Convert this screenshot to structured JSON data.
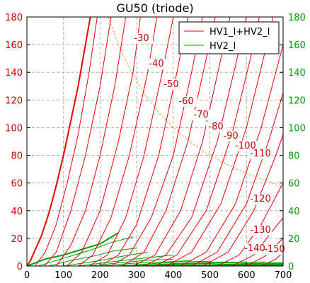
{
  "chart_data": {
    "type": "line",
    "title": "GU50 (triode)",
    "xlabel": "",
    "ylabel": "",
    "xlim": [
      0,
      700
    ],
    "ylim": [
      0,
      180
    ],
    "xticks": [
      0,
      100,
      200,
      300,
      400,
      500,
      600,
      700
    ],
    "yticks": [
      0,
      20,
      40,
      60,
      80,
      100,
      120,
      140,
      160,
      180
    ],
    "grid": true,
    "legend_position": "top-right",
    "colors": {
      "total": "#ee0000",
      "g2": "#00a000",
      "dissipation": "#f0a040",
      "grid": "#b0b0b0"
    },
    "legend": [
      "HV1_I+HV2_I",
      "HV2_I"
    ],
    "grid_curve_labels": [
      "-30",
      "-40",
      "-50",
      "-60",
      "-70",
      "-80",
      "-90",
      "-100",
      "-110",
      "-120",
      "-130",
      "-140",
      "-150"
    ],
    "series": [
      {
        "grid_voltage": 0,
        "total": [
          [
            0,
            0
          ],
          [
            10,
            4
          ],
          [
            20,
            10
          ],
          [
            40,
            22
          ],
          [
            60,
            38
          ],
          [
            80,
            58
          ],
          [
            100,
            80
          ],
          [
            120,
            105
          ],
          [
            140,
            130
          ],
          [
            160,
            160
          ],
          [
            180,
            190
          ]
        ],
        "g2": [
          [
            0,
            0
          ],
          [
            50,
            5
          ],
          [
            100,
            8
          ],
          [
            150,
            12
          ],
          [
            200,
            16
          ],
          [
            250,
            24
          ]
        ]
      },
      {
        "grid_voltage": -10,
        "total": [
          [
            22,
            0
          ],
          [
            50,
            10
          ],
          [
            80,
            30
          ],
          [
            110,
            60
          ],
          [
            140,
            95
          ],
          [
            170,
            140
          ],
          [
            192,
            180
          ]
        ],
        "g2": [
          [
            30,
            0
          ],
          [
            80,
            4
          ],
          [
            130,
            8
          ],
          [
            180,
            12
          ],
          [
            230,
            17
          ],
          [
            290,
            21
          ]
        ]
      },
      {
        "grid_voltage": -20,
        "total": [
          [
            48,
            0
          ],
          [
            80,
            10
          ],
          [
            120,
            40
          ],
          [
            160,
            80
          ],
          [
            200,
            130
          ],
          [
            230,
            180
          ]
        ],
        "g2": [
          [
            60,
            0
          ],
          [
            120,
            4
          ],
          [
            180,
            7
          ],
          [
            240,
            11
          ],
          [
            300,
            13
          ]
        ]
      },
      {
        "grid_voltage": -30,
        "total": [
          [
            80,
            0
          ],
          [
            120,
            15
          ],
          [
            160,
            40
          ],
          [
            200,
            80
          ],
          [
            240,
            130
          ],
          [
            270,
            180
          ]
        ],
        "g2": [
          [
            100,
            0
          ],
          [
            150,
            2
          ],
          [
            200,
            4
          ],
          [
            260,
            7
          ],
          [
            330,
            10
          ]
        ]
      },
      {
        "grid_voltage": -40,
        "total": [
          [
            110,
            0
          ],
          [
            150,
            10
          ],
          [
            200,
            40
          ],
          [
            250,
            90
          ],
          [
            290,
            140
          ],
          [
            310,
            180
          ]
        ],
        "g2": [
          [
            140,
            0
          ],
          [
            200,
            2
          ],
          [
            260,
            4
          ],
          [
            330,
            6
          ],
          [
            400,
            8
          ]
        ]
      },
      {
        "grid_voltage": -50,
        "total": [
          [
            140,
            0
          ],
          [
            180,
            8
          ],
          [
            230,
            35
          ],
          [
            280,
            80
          ],
          [
            330,
            140
          ],
          [
            355,
            180
          ]
        ],
        "g2": [
          [
            170,
            0
          ],
          [
            240,
            2
          ],
          [
            320,
            4
          ],
          [
            400,
            5
          ]
        ]
      },
      {
        "grid_voltage": -60,
        "total": [
          [
            170,
            0
          ],
          [
            220,
            8
          ],
          [
            270,
            35
          ],
          [
            320,
            80
          ],
          [
            370,
            140
          ],
          [
            400,
            180
          ]
        ],
        "g2": [
          [
            200,
            0
          ],
          [
            290,
            2
          ],
          [
            380,
            3
          ],
          [
            450,
            4
          ]
        ]
      },
      {
        "grid_voltage": -70,
        "total": [
          [
            200,
            0
          ],
          [
            250,
            8
          ],
          [
            300,
            30
          ],
          [
            360,
            80
          ],
          [
            410,
            140
          ],
          [
            440,
            180
          ]
        ],
        "g2": [
          [
            240,
            0
          ],
          [
            330,
            1.5
          ],
          [
            420,
            3
          ],
          [
            500,
            3.5
          ]
        ]
      },
      {
        "grid_voltage": -80,
        "total": [
          [
            230,
            0
          ],
          [
            280,
            8
          ],
          [
            340,
            35
          ],
          [
            400,
            80
          ],
          [
            450,
            140
          ],
          [
            480,
            180
          ]
        ],
        "g2": [
          [
            270,
            0
          ],
          [
            380,
            1.5
          ],
          [
            480,
            2.5
          ],
          [
            550,
            3
          ]
        ]
      },
      {
        "grid_voltage": -90,
        "total": [
          [
            260,
            0
          ],
          [
            320,
            10
          ],
          [
            380,
            40
          ],
          [
            440,
            90
          ],
          [
            490,
            150
          ],
          [
            515,
            180
          ]
        ],
        "g2": [
          [
            300,
            0
          ],
          [
            420,
            1.5
          ],
          [
            520,
            2.5
          ],
          [
            600,
            3
          ]
        ]
      },
      {
        "grid_voltage": -100,
        "total": [
          [
            290,
            0
          ],
          [
            350,
            8
          ],
          [
            420,
            40
          ],
          [
            480,
            90
          ],
          [
            530,
            150
          ],
          [
            555,
            180
          ]
        ],
        "g2": [
          [
            330,
            0
          ],
          [
            460,
            1.5
          ],
          [
            580,
            2.5
          ],
          [
            650,
            3
          ]
        ]
      },
      {
        "grid_voltage": -110,
        "total": [
          [
            320,
            0
          ],
          [
            380,
            8
          ],
          [
            450,
            35
          ],
          [
            520,
            90
          ],
          [
            570,
            145
          ],
          [
            600,
            180
          ]
        ],
        "g2": [
          [
            360,
            0
          ],
          [
            500,
            1
          ],
          [
            620,
            2
          ],
          [
            700,
            2.5
          ]
        ]
      },
      {
        "grid_voltage": -120,
        "total": [
          [
            350,
            0
          ],
          [
            410,
            8
          ],
          [
            490,
            40
          ],
          [
            560,
            95
          ],
          [
            620,
            160
          ],
          [
            635,
            180
          ]
        ],
        "g2": [
          [
            390,
            0
          ],
          [
            540,
            1
          ],
          [
            700,
            2
          ]
        ]
      },
      {
        "grid_voltage": -130,
        "total": [
          [
            380,
            0
          ],
          [
            450,
            10
          ],
          [
            530,
            45
          ],
          [
            600,
            100
          ],
          [
            660,
            165
          ],
          [
            672,
            180
          ]
        ],
        "g2": [
          [
            420,
            0
          ],
          [
            580,
            1
          ],
          [
            700,
            1.5
          ]
        ]
      },
      {
        "grid_voltage": -140,
        "total": [
          [
            420,
            0
          ],
          [
            490,
            10
          ],
          [
            570,
            45
          ],
          [
            640,
            100
          ],
          [
            700,
            160
          ]
        ],
        "g2": [
          [
            450,
            0
          ],
          [
            620,
            1
          ],
          [
            700,
            1.2
          ]
        ]
      },
      {
        "grid_voltage": -150,
        "total": [
          [
            450,
            0
          ],
          [
            520,
            10
          ],
          [
            600,
            45
          ],
          [
            660,
            90
          ],
          [
            700,
            125
          ]
        ],
        "g2": [
          [
            480,
            0
          ],
          [
            650,
            0.8
          ],
          [
            700,
            1
          ]
        ]
      },
      {
        "grid_voltage": -160,
        "total": [
          [
            480,
            0
          ],
          [
            550,
            10
          ],
          [
            620,
            40
          ],
          [
            680,
            80
          ],
          [
            700,
            95
          ]
        ],
        "g2": [
          [
            520,
            0
          ],
          [
            700,
            0.8
          ]
        ]
      },
      {
        "grid_voltage": -170,
        "total": [
          [
            520,
            0
          ],
          [
            580,
            8
          ],
          [
            640,
            30
          ],
          [
            690,
            55
          ],
          [
            700,
            60
          ]
        ],
        "g2": [
          [
            560,
            0
          ],
          [
            700,
            0.5
          ]
        ]
      },
      {
        "grid_voltage": -180,
        "total": [
          [
            560,
            0
          ],
          [
            620,
            8
          ],
          [
            670,
            25
          ],
          [
            700,
            35
          ]
        ],
        "g2": [
          [
            600,
            0
          ],
          [
            700,
            0.4
          ]
        ]
      },
      {
        "grid_voltage": -190,
        "total": [
          [
            600,
            0
          ],
          [
            650,
            7
          ],
          [
            700,
            20
          ]
        ],
        "g2": []
      },
      {
        "grid_voltage": -200,
        "total": [
          [
            640,
            0
          ],
          [
            680,
            5
          ],
          [
            700,
            10
          ]
        ],
        "g2": []
      }
    ],
    "dissipation_curve": [
      [
        222,
        180
      ],
      [
        250,
        160
      ],
      [
        280,
        143
      ],
      [
        320,
        125
      ],
      [
        360,
        111
      ],
      [
        400,
        100
      ],
      [
        450,
        89
      ],
      [
        500,
        80
      ],
      [
        550,
        73
      ],
      [
        600,
        67
      ],
      [
        650,
        62
      ],
      [
        700,
        57
      ]
    ]
  }
}
